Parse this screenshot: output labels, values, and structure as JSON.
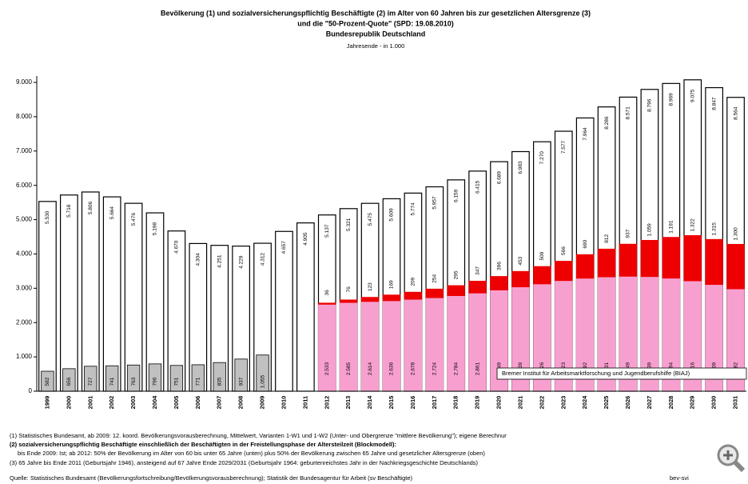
{
  "chart_data": {
    "type": "bar",
    "title": "Bevölkerung (1) und sozialversicherungspflichtig Beschäftigte (2) im Alter von 60 Jahren bis zur gesetzlichen Altersgrenze (3)",
    "title_line2": "und die \"50-Prozent-Quote\" (SPD: 19.08.2010)",
    "title_line3": "Bundesrepublik Deutschland",
    "subtitle": "Jahresende - in 1.000",
    "annotation": "Bremer Institut für Arbeitsmarktforschung und Jugendberufshilfe (BIAJ)",
    "categories": [
      "1999",
      "2000",
      "2001",
      "2002",
      "2003",
      "2004",
      "2005",
      "2006",
      "2007",
      "2008",
      "2009",
      "2010",
      "2011",
      "2012",
      "2013",
      "2014",
      "2015",
      "2016",
      "2017",
      "2018",
      "2019",
      "2020",
      "2021",
      "2022",
      "2023",
      "2024",
      "2025",
      "2026",
      "2027",
      "2028",
      "2029",
      "2030",
      "2031"
    ],
    "series": [
      {
        "color": "#ffffff",
        "values": [
          5530,
          5718,
          5806,
          5664,
          5476,
          5198,
          4670,
          4304,
          4251,
          4229,
          4312,
          4657,
          4905,
          5137,
          5321,
          5475,
          5609,
          5774,
          5957,
          6159,
          6415,
          6689,
          6983,
          7270,
          7577,
          7964,
          8286,
          8571,
          8796,
          8969,
          9075,
          8847,
          8564
        ],
        "value_labels": [
          "5.530",
          "5.718",
          "5.806",
          "5.664",
          "5.476",
          "5.198",
          "4.670",
          "4.304",
          "4.251",
          "4.229",
          "4.312",
          "4.657",
          "4.905",
          "5.137",
          "5.321",
          "5.475",
          "5.609",
          "5.774",
          "5.957",
          "6.159",
          "6.415",
          "6.689",
          "6.983",
          "7.270",
          "7.577",
          "7.964",
          "8.286",
          "8.571",
          "8.796",
          "8.969",
          "9.075",
          "8.847",
          "8.564"
        ]
      },
      {
        "color": "#c0c0c0",
        "values": [
          582,
          656,
          727,
          741,
          763,
          796,
          751,
          771,
          835,
          937,
          1055,
          null,
          null,
          null,
          null,
          null,
          null,
          null,
          null,
          null,
          null,
          null,
          null,
          null,
          null,
          null,
          null,
          null,
          null,
          null,
          null,
          null,
          null
        ],
        "value_labels": [
          "582",
          "656",
          "727",
          "741",
          "763",
          "796",
          "751",
          "771",
          "835",
          "937",
          "1.055",
          null,
          null,
          null,
          null,
          null,
          null,
          null,
          null,
          null,
          null,
          null,
          null,
          null,
          null,
          null,
          null,
          null,
          null,
          null,
          null,
          null,
          null
        ]
      },
      {
        "color": "#f7a0d0",
        "values": [
          null,
          null,
          null,
          null,
          null,
          null,
          null,
          null,
          null,
          null,
          null,
          null,
          null,
          2533,
          2585,
          2614,
          2636,
          2678,
          2724,
          2784,
          2861,
          2949,
          3039,
          3126,
          3223,
          3292,
          3331,
          3349,
          3339,
          3294,
          3216,
          3109,
          2982
        ],
        "value_labels": [
          null,
          null,
          null,
          null,
          null,
          null,
          null,
          null,
          null,
          null,
          null,
          null,
          null,
          "2.533",
          "2.585",
          "2.614",
          "2.636",
          "2.678",
          "2.724",
          "2.784",
          "2.861",
          "2.949",
          "3.039",
          "3.126",
          "3.223",
          "3.292",
          "3.331",
          "3.349",
          "3.339",
          "3.294",
          "3.216",
          "3.109",
          "2.982"
        ]
      },
      {
        "color": "#ee0000",
        "values": [
          null,
          null,
          null,
          null,
          null,
          null,
          null,
          null,
          null,
          null,
          null,
          null,
          null,
          36,
          76,
          123,
          169,
          209,
          254,
          295,
          347,
          396,
          453,
          509,
          566,
          690,
          812,
          937,
          1059,
          1191,
          1322,
          1315,
          1300
        ],
        "value_labels": [
          null,
          null,
          null,
          null,
          null,
          null,
          null,
          null,
          null,
          null,
          null,
          null,
          null,
          "36",
          "76",
          "123",
          "169",
          "209",
          "254",
          "295",
          "347",
          "396",
          "453",
          "509",
          "566",
          "690",
          "812",
          "937",
          "1.059",
          "1.191",
          "1.322",
          "1.315",
          "1.300"
        ]
      }
    ],
    "ylim": [
      0,
      9000
    ],
    "yticks": [
      0,
      {
        "value": 1000,
        "label": "1.000"
      },
      {
        "value": 2000,
        "label": "2.000"
      },
      {
        "value": 3000,
        "label": "3.000"
      },
      {
        "value": 4000,
        "label": "4.000"
      },
      {
        "value": 5000,
        "label": "5.000"
      },
      {
        "value": 6000,
        "label": "6.000"
      },
      {
        "value": 7000,
        "label": "7.000"
      },
      {
        "value": 8000,
        "label": "8.000"
      },
      {
        "value": 9000,
        "label": "9.000"
      }
    ],
    "grid": false,
    "footnotes": [
      "(1) Statistisches Bundesamt, ab 2009: 12. koord. Bevölkerungsvorausberechnung, Mittelwert, Varianten 1-W1 und 1-W2 (Unter- und Obergrenze \"mittlere Bevölkerung\"); eigene Berechnur",
      "(2) sozialversicherungspflichtig Beschäftigte einschließlich der Beschäftigten in der Freistellungsphase der Altersteilzeit (Blockmodell):",
      "bis Ende 2009: Ist; ab 2012: 50% der Bevölkerung im Alter von 60 bis unter 65 Jahre (unten) plus 50% der Bevölkerung zwischen 65 Jahre und gesetzlicher Altersgrenze (oben)",
      "(3) 65 Jahre bis Ende 2011 (Geburtsjahr 1946), ansteigend auf 67 Jahre Ende 2029/2031 (Geburtsjahr 1964: geburtenreichstes Jahr in der Nachkriegsgeschichte Deutschlands)",
      "Quelle: Statistisches Bundesamt (Bevölkerungsfortschreibung/Bevölkerungsvorausberechnung); Statistik der Bundesagentur für Arbeit (sv Beschäftigte)"
    ],
    "code": "bev-svi"
  }
}
